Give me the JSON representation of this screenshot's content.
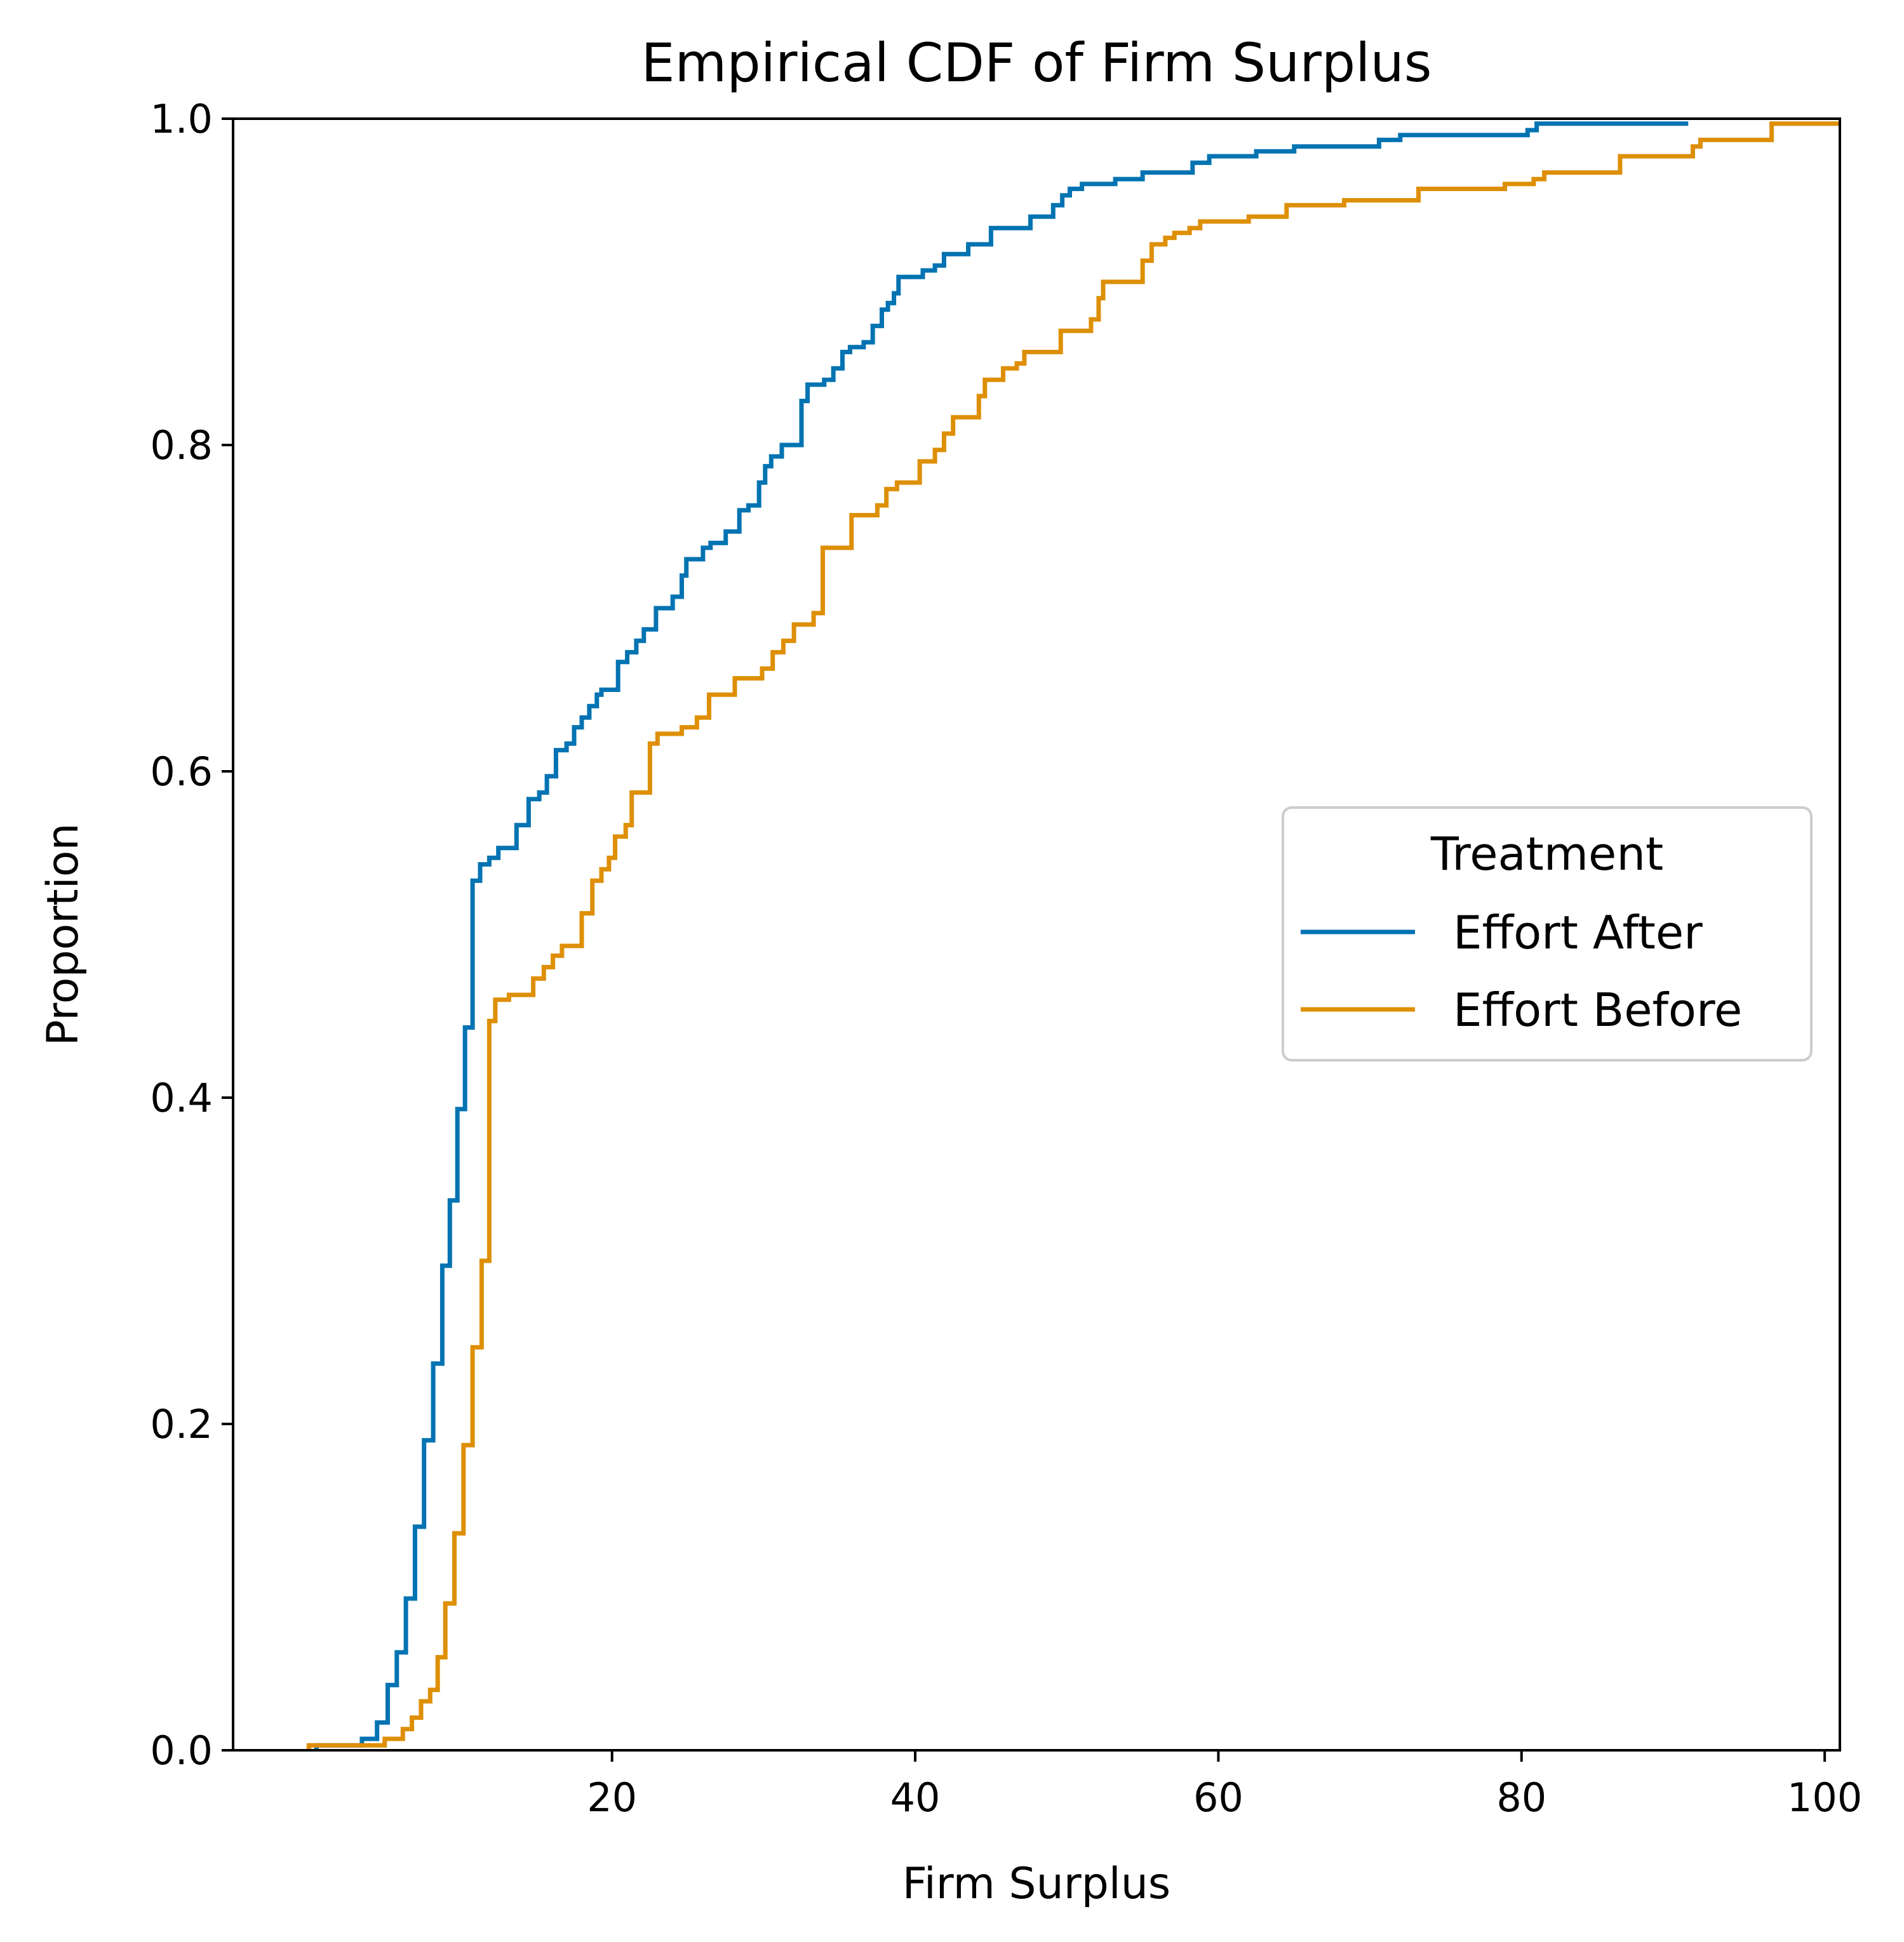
{
  "chart_data": {
    "type": "line",
    "subtype": "ecdf-step",
    "title": "Empirical CDF of Firm Surplus",
    "xlabel": "Firm Surplus",
    "ylabel": "Proportion",
    "xlim": [
      -5,
      101
    ],
    "ylim": [
      0,
      1
    ],
    "xticks": [
      20,
      40,
      60,
      80,
      100
    ],
    "yticks": [
      0.0,
      0.2,
      0.4,
      0.6,
      0.8,
      1.0
    ],
    "xtick_labels": [
      "20",
      "40",
      "60",
      "80",
      "100"
    ],
    "ytick_labels": [
      "0.0",
      "0.2",
      "0.4",
      "0.6",
      "0.8",
      "1.0"
    ],
    "grid": false,
    "legend": {
      "title": "Treatment",
      "placement": "center-right"
    },
    "series": [
      {
        "name": "Effort After",
        "color": "#0173b2",
        "points": [
          [
            0.5,
            0
          ],
          [
            0.5,
            0.003
          ],
          [
            3.5,
            0.003
          ],
          [
            3.5,
            0.007
          ],
          [
            4.5,
            0.007
          ],
          [
            4.5,
            0.017
          ],
          [
            5.2,
            0.017
          ],
          [
            5.2,
            0.04
          ],
          [
            5.8,
            0.04
          ],
          [
            5.8,
            0.06
          ],
          [
            6.4,
            0.06
          ],
          [
            6.4,
            0.093
          ],
          [
            7.0,
            0.093
          ],
          [
            7.0,
            0.137
          ],
          [
            7.6,
            0.137
          ],
          [
            7.6,
            0.19
          ],
          [
            8.2,
            0.19
          ],
          [
            8.2,
            0.237
          ],
          [
            8.8,
            0.237
          ],
          [
            8.8,
            0.297
          ],
          [
            9.3,
            0.297
          ],
          [
            9.3,
            0.337
          ],
          [
            9.8,
            0.337
          ],
          [
            9.8,
            0.393
          ],
          [
            10.3,
            0.393
          ],
          [
            10.3,
            0.443
          ],
          [
            10.8,
            0.443
          ],
          [
            10.8,
            0.533
          ],
          [
            11.3,
            0.533
          ],
          [
            11.3,
            0.543
          ],
          [
            11.9,
            0.543
          ],
          [
            11.9,
            0.547
          ],
          [
            12.5,
            0.547
          ],
          [
            12.5,
            0.553
          ],
          [
            13.7,
            0.553
          ],
          [
            13.7,
            0.567
          ],
          [
            14.5,
            0.567
          ],
          [
            14.5,
            0.583
          ],
          [
            15.2,
            0.583
          ],
          [
            15.2,
            0.587
          ],
          [
            15.7,
            0.587
          ],
          [
            15.7,
            0.597
          ],
          [
            16.3,
            0.597
          ],
          [
            16.3,
            0.613
          ],
          [
            17.0,
            0.613
          ],
          [
            17.0,
            0.617
          ],
          [
            17.5,
            0.617
          ],
          [
            17.5,
            0.627
          ],
          [
            18.0,
            0.627
          ],
          [
            18.0,
            0.633
          ],
          [
            18.5,
            0.633
          ],
          [
            18.5,
            0.64
          ],
          [
            19.0,
            0.64
          ],
          [
            19.0,
            0.647
          ],
          [
            19.3,
            0.647
          ],
          [
            19.3,
            0.65
          ],
          [
            20.4,
            0.65
          ],
          [
            20.4,
            0.667
          ],
          [
            21.0,
            0.667
          ],
          [
            21.0,
            0.673
          ],
          [
            21.6,
            0.673
          ],
          [
            21.6,
            0.68
          ],
          [
            22.1,
            0.68
          ],
          [
            22.1,
            0.687
          ],
          [
            22.9,
            0.687
          ],
          [
            22.9,
            0.7
          ],
          [
            24.0,
            0.7
          ],
          [
            24.0,
            0.707
          ],
          [
            24.6,
            0.707
          ],
          [
            24.6,
            0.72
          ],
          [
            24.9,
            0.72
          ],
          [
            24.9,
            0.73
          ],
          [
            26.0,
            0.73
          ],
          [
            26.0,
            0.737
          ],
          [
            26.5,
            0.737
          ],
          [
            26.5,
            0.74
          ],
          [
            27.5,
            0.74
          ],
          [
            27.5,
            0.747
          ],
          [
            28.4,
            0.747
          ],
          [
            28.4,
            0.76
          ],
          [
            29.0,
            0.76
          ],
          [
            29.0,
            0.763
          ],
          [
            29.7,
            0.763
          ],
          [
            29.7,
            0.777
          ],
          [
            30.1,
            0.777
          ],
          [
            30.1,
            0.787
          ],
          [
            30.5,
            0.787
          ],
          [
            30.5,
            0.793
          ],
          [
            31.2,
            0.793
          ],
          [
            31.2,
            0.8
          ],
          [
            32.5,
            0.8
          ],
          [
            32.5,
            0.827
          ],
          [
            32.9,
            0.827
          ],
          [
            32.9,
            0.837
          ],
          [
            34.0,
            0.837
          ],
          [
            34.0,
            0.84
          ],
          [
            34.6,
            0.84
          ],
          [
            34.6,
            0.847
          ],
          [
            35.2,
            0.847
          ],
          [
            35.2,
            0.857
          ],
          [
            35.7,
            0.857
          ],
          [
            35.7,
            0.86
          ],
          [
            36.6,
            0.86
          ],
          [
            36.6,
            0.863
          ],
          [
            37.2,
            0.863
          ],
          [
            37.2,
            0.873
          ],
          [
            37.8,
            0.873
          ],
          [
            37.8,
            0.883
          ],
          [
            38.2,
            0.883
          ],
          [
            38.2,
            0.887
          ],
          [
            38.6,
            0.887
          ],
          [
            38.6,
            0.893
          ],
          [
            38.9,
            0.893
          ],
          [
            38.9,
            0.903
          ],
          [
            40.5,
            0.903
          ],
          [
            40.5,
            0.907
          ],
          [
            41.3,
            0.907
          ],
          [
            41.3,
            0.91
          ],
          [
            41.9,
            0.91
          ],
          [
            41.9,
            0.917
          ],
          [
            43.5,
            0.917
          ],
          [
            43.5,
            0.923
          ],
          [
            45.0,
            0.923
          ],
          [
            45.0,
            0.933
          ],
          [
            47.6,
            0.933
          ],
          [
            47.6,
            0.94
          ],
          [
            49.1,
            0.94
          ],
          [
            49.1,
            0.947
          ],
          [
            49.7,
            0.947
          ],
          [
            49.7,
            0.953
          ],
          [
            50.2,
            0.953
          ],
          [
            50.2,
            0.957
          ],
          [
            51.0,
            0.957
          ],
          [
            51.0,
            0.96
          ],
          [
            53.2,
            0.96
          ],
          [
            53.2,
            0.963
          ],
          [
            55.0,
            0.963
          ],
          [
            55.0,
            0.967
          ],
          [
            58.3,
            0.967
          ],
          [
            58.3,
            0.973
          ],
          [
            59.4,
            0.973
          ],
          [
            59.4,
            0.977
          ],
          [
            62.5,
            0.977
          ],
          [
            62.5,
            0.98
          ],
          [
            65.0,
            0.98
          ],
          [
            65.0,
            0.983
          ],
          [
            70.6,
            0.983
          ],
          [
            70.6,
            0.987
          ],
          [
            72.0,
            0.987
          ],
          [
            72.0,
            0.99
          ],
          [
            80.4,
            0.99
          ],
          [
            80.4,
            0.993
          ],
          [
            81.0,
            0.993
          ],
          [
            81.0,
            0.997
          ],
          [
            91.0,
            0.997
          ]
        ]
      },
      {
        "name": "Effort Before",
        "color": "#de8f05",
        "points": [
          [
            0.0,
            0
          ],
          [
            0.0,
            0.003
          ],
          [
            1.5,
            0.003
          ],
          [
            1.5,
            0.003
          ],
          [
            5.0,
            0.003
          ],
          [
            5.0,
            0.007
          ],
          [
            6.2,
            0.007
          ],
          [
            6.2,
            0.013
          ],
          [
            6.8,
            0.013
          ],
          [
            6.8,
            0.02
          ],
          [
            7.4,
            0.02
          ],
          [
            7.4,
            0.03
          ],
          [
            8.0,
            0.03
          ],
          [
            8.0,
            0.037
          ],
          [
            8.5,
            0.037
          ],
          [
            8.5,
            0.057
          ],
          [
            9.0,
            0.057
          ],
          [
            9.0,
            0.09
          ],
          [
            9.6,
            0.09
          ],
          [
            9.6,
            0.133
          ],
          [
            10.2,
            0.133
          ],
          [
            10.2,
            0.187
          ],
          [
            10.8,
            0.187
          ],
          [
            10.8,
            0.247
          ],
          [
            11.4,
            0.247
          ],
          [
            11.4,
            0.3
          ],
          [
            11.9,
            0.3
          ],
          [
            11.9,
            0.447
          ],
          [
            12.3,
            0.447
          ],
          [
            12.3,
            0.46
          ],
          [
            13.2,
            0.46
          ],
          [
            13.2,
            0.463
          ],
          [
            14.8,
            0.463
          ],
          [
            14.8,
            0.473
          ],
          [
            15.5,
            0.473
          ],
          [
            15.5,
            0.48
          ],
          [
            16.1,
            0.48
          ],
          [
            16.1,
            0.487
          ],
          [
            16.7,
            0.487
          ],
          [
            16.7,
            0.493
          ],
          [
            18.0,
            0.493
          ],
          [
            18.0,
            0.513
          ],
          [
            18.7,
            0.513
          ],
          [
            18.7,
            0.533
          ],
          [
            19.3,
            0.533
          ],
          [
            19.3,
            0.54
          ],
          [
            19.8,
            0.54
          ],
          [
            19.8,
            0.547
          ],
          [
            20.2,
            0.547
          ],
          [
            20.2,
            0.56
          ],
          [
            20.9,
            0.56
          ],
          [
            20.9,
            0.567
          ],
          [
            21.3,
            0.567
          ],
          [
            21.3,
            0.587
          ],
          [
            22.5,
            0.587
          ],
          [
            22.5,
            0.617
          ],
          [
            23.0,
            0.617
          ],
          [
            23.0,
            0.623
          ],
          [
            24.6,
            0.623
          ],
          [
            24.6,
            0.627
          ],
          [
            25.6,
            0.627
          ],
          [
            25.6,
            0.633
          ],
          [
            26.4,
            0.633
          ],
          [
            26.4,
            0.647
          ],
          [
            28.1,
            0.647
          ],
          [
            28.1,
            0.657
          ],
          [
            29.9,
            0.657
          ],
          [
            29.9,
            0.663
          ],
          [
            30.6,
            0.663
          ],
          [
            30.6,
            0.673
          ],
          [
            31.3,
            0.673
          ],
          [
            31.3,
            0.68
          ],
          [
            32.0,
            0.68
          ],
          [
            32.0,
            0.69
          ],
          [
            33.3,
            0.69
          ],
          [
            33.3,
            0.697
          ],
          [
            33.9,
            0.697
          ],
          [
            33.9,
            0.737
          ],
          [
            35.8,
            0.737
          ],
          [
            35.8,
            0.757
          ],
          [
            37.5,
            0.757
          ],
          [
            37.5,
            0.763
          ],
          [
            38.1,
            0.763
          ],
          [
            38.1,
            0.773
          ],
          [
            38.8,
            0.773
          ],
          [
            38.8,
            0.777
          ],
          [
            40.3,
            0.777
          ],
          [
            40.3,
            0.79
          ],
          [
            41.3,
            0.79
          ],
          [
            41.3,
            0.797
          ],
          [
            41.9,
            0.797
          ],
          [
            41.9,
            0.807
          ],
          [
            42.5,
            0.807
          ],
          [
            42.5,
            0.817
          ],
          [
            44.2,
            0.817
          ],
          [
            44.2,
            0.83
          ],
          [
            44.6,
            0.83
          ],
          [
            44.6,
            0.84
          ],
          [
            45.8,
            0.84
          ],
          [
            45.8,
            0.847
          ],
          [
            46.7,
            0.847
          ],
          [
            46.7,
            0.85
          ],
          [
            47.2,
            0.85
          ],
          [
            47.2,
            0.857
          ],
          [
            49.6,
            0.857
          ],
          [
            49.6,
            0.87
          ],
          [
            51.6,
            0.87
          ],
          [
            51.6,
            0.877
          ],
          [
            52.1,
            0.877
          ],
          [
            52.1,
            0.89
          ],
          [
            52.4,
            0.89
          ],
          [
            52.4,
            0.9
          ],
          [
            55.0,
            0.9
          ],
          [
            55.0,
            0.913
          ],
          [
            55.6,
            0.913
          ],
          [
            55.6,
            0.923
          ],
          [
            56.5,
            0.923
          ],
          [
            56.5,
            0.927
          ],
          [
            57.1,
            0.927
          ],
          [
            57.1,
            0.93
          ],
          [
            58.1,
            0.93
          ],
          [
            58.1,
            0.933
          ],
          [
            58.8,
            0.933
          ],
          [
            58.8,
            0.937
          ],
          [
            62.0,
            0.937
          ],
          [
            62.0,
            0.94
          ],
          [
            64.5,
            0.94
          ],
          [
            64.5,
            0.947
          ],
          [
            68.3,
            0.947
          ],
          [
            68.3,
            0.95
          ],
          [
            73.2,
            0.95
          ],
          [
            73.2,
            0.957
          ],
          [
            78.9,
            0.957
          ],
          [
            78.9,
            0.96
          ],
          [
            80.8,
            0.96
          ],
          [
            80.8,
            0.963
          ],
          [
            81.5,
            0.963
          ],
          [
            81.5,
            0.967
          ],
          [
            86.5,
            0.967
          ],
          [
            86.5,
            0.977
          ],
          [
            91.3,
            0.977
          ],
          [
            91.3,
            0.983
          ],
          [
            91.8,
            0.983
          ],
          [
            91.8,
            0.987
          ],
          [
            96.5,
            0.987
          ],
          [
            96.5,
            0.997
          ],
          [
            101.0,
            0.997
          ]
        ]
      }
    ]
  }
}
